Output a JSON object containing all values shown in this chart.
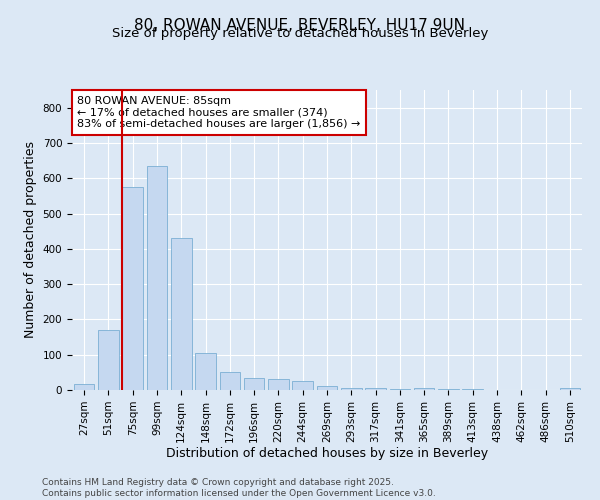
{
  "title1": "80, ROWAN AVENUE, BEVERLEY, HU17 9UN",
  "title2": "Size of property relative to detached houses in Beverley",
  "xlabel": "Distribution of detached houses by size in Beverley",
  "ylabel": "Number of detached properties",
  "categories": [
    "27sqm",
    "51sqm",
    "75sqm",
    "99sqm",
    "124sqm",
    "148sqm",
    "172sqm",
    "196sqm",
    "220sqm",
    "244sqm",
    "269sqm",
    "293sqm",
    "317sqm",
    "341sqm",
    "365sqm",
    "389sqm",
    "413sqm",
    "438sqm",
    "462sqm",
    "486sqm",
    "510sqm"
  ],
  "values": [
    17,
    170,
    575,
    635,
    430,
    105,
    50,
    35,
    30,
    25,
    10,
    5,
    5,
    3,
    5,
    2,
    3,
    1,
    0,
    0,
    5
  ],
  "bar_color": "#c5d8f0",
  "bar_edgecolor": "#7bafd4",
  "vline_color": "#cc0000",
  "vline_x_index": 2,
  "annotation_text": "80 ROWAN AVENUE: 85sqm\n← 17% of detached houses are smaller (374)\n83% of semi-detached houses are larger (1,856) →",
  "annotation_box_facecolor": "#ffffff",
  "annotation_box_edgecolor": "#cc0000",
  "ylim": [
    0,
    850
  ],
  "yticks": [
    0,
    100,
    200,
    300,
    400,
    500,
    600,
    700,
    800
  ],
  "background_color": "#dce8f5",
  "footer": "Contains HM Land Registry data © Crown copyright and database right 2025.\nContains public sector information licensed under the Open Government Licence v3.0.",
  "title_fontsize": 11,
  "subtitle_fontsize": 9.5,
  "axis_label_fontsize": 9,
  "tick_fontsize": 7.5,
  "footer_fontsize": 6.5,
  "annotation_fontsize": 8
}
